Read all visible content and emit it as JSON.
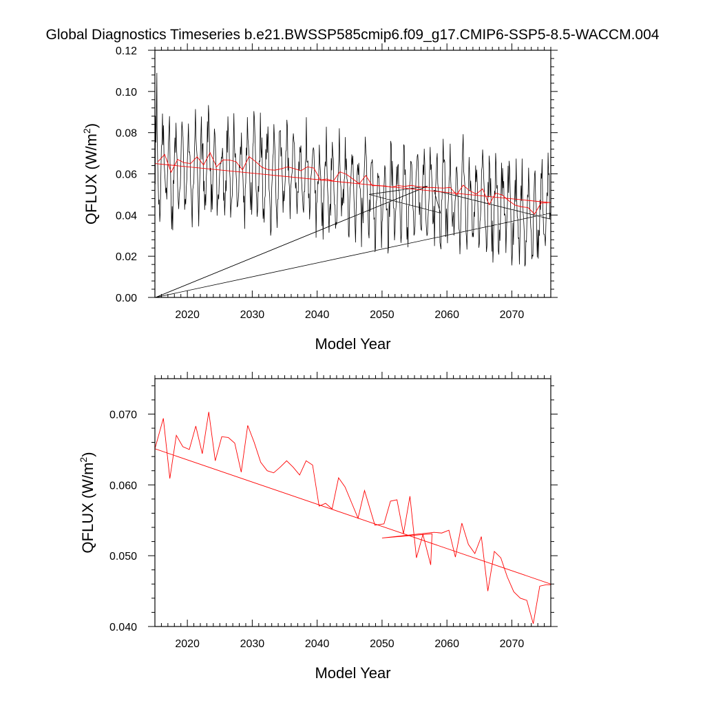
{
  "title": "Global Diagnostics Timeseries b.e21.BWSSP585cmip6.f09_g17.CMIP6-SSP5-8.5-WACCM.004",
  "colors": {
    "monthly": "#000000",
    "annual": "#ff0000",
    "trend": "#ff0000",
    "frame": "#000000"
  },
  "chart_data": [
    {
      "type": "line",
      "xlabel": "Model Year",
      "ylabel": "QFLUX (W/m",
      "ylabel_sup": "2",
      "ylabel_close": ")",
      "xlim": [
        2015,
        2076
      ],
      "ylim": [
        0.0,
        0.12
      ],
      "xticks": [
        2020,
        2030,
        2040,
        2050,
        2060,
        2070
      ],
      "xtick_labels": [
        "2020",
        "2030",
        "2040",
        "2050",
        "2060",
        "2070"
      ],
      "yticks": [
        0.0,
        0.02,
        0.04,
        0.06,
        0.08,
        0.1,
        0.12
      ],
      "ytick_labels": [
        "0.00",
        "0.02",
        "0.04",
        "0.06",
        "0.08",
        "0.10",
        "0.12"
      ],
      "grid": false,
      "series": [
        {
          "style": "monthly",
          "trend_start": 0.066,
          "trend_end": 0.04,
          "amplitude": 0.02,
          "extras": {
            "x": [
              2015.1,
              2057.0,
              2048.0,
              2059.0,
              2058.0
            ],
            "y": [
              0.0,
              0.054,
              0.05,
              0.041,
              0.052
            ]
          }
        },
        {
          "style": "annual",
          "x": [
            2015.5,
            2016.5,
            2017.5,
            2018.5,
            2019.5,
            2020.5,
            2021.5,
            2022.5,
            2023.5,
            2024.5,
            2025.5,
            2026.5,
            2027.5,
            2028.5,
            2029.5,
            2030.5,
            2031.5,
            2032.5,
            2033.5,
            2034.5,
            2035.5,
            2036.5,
            2037.5,
            2038.5,
            2039.5,
            2040.5,
            2041.5,
            2042.5,
            2043.5,
            2044.5,
            2045.5,
            2046.5,
            2047.5,
            2048.5,
            2049.5,
            2050.5,
            2051.5,
            2052.5,
            2053.5,
            2054.5,
            2055.5,
            2056.5,
            2057.5,
            2058.5,
            2059.5,
            2060.5,
            2061.5,
            2062.5,
            2063.5,
            2064.5,
            2065.5,
            2066.5,
            2067.5,
            2068.5,
            2069.5,
            2070.5,
            2071.5,
            2072.5,
            2073.5,
            2074.5,
            2075.5
          ],
          "y": [
            0.066,
            0.0694,
            0.0608,
            0.067,
            0.0654,
            0.065,
            0.0683,
            0.0643,
            0.0703,
            0.0634,
            0.0668,
            0.0667,
            0.0659,
            0.0619,
            0.0684,
            0.066,
            0.0632,
            0.062,
            0.0618,
            0.0625,
            0.0634,
            0.0625,
            0.0615,
            0.0634,
            0.0628,
            0.057,
            0.0575,
            0.0565,
            0.061,
            0.0598,
            0.0575,
            0.0552,
            0.0592,
            0.0542,
            0.0543,
            0.0541,
            0.0535,
            0.0543,
            0.0539,
            0.0544,
            0.0538,
            0.0534,
            0.0534,
            0.0532,
            0.0531,
            0.0534,
            0.0498,
            0.0545,
            0.0518,
            0.0502,
            0.0527,
            0.045,
            0.0506,
            0.0498,
            0.047,
            0.0448,
            0.044,
            0.0436,
            0.0405,
            0.0458,
            0.0459
          ]
        },
        {
          "style": "trend",
          "x": [
            2015.0,
            2076.0
          ],
          "y": [
            0.065,
            0.046
          ]
        }
      ]
    },
    {
      "type": "line",
      "xlabel": "Model Year",
      "ylabel": "QFLUX (W/m",
      "ylabel_sup": "2",
      "ylabel_close": ")",
      "xlim": [
        2015,
        2076
      ],
      "ylim": [
        0.04,
        0.075
      ],
      "xticks": [
        2020,
        2030,
        2040,
        2050,
        2060,
        2070
      ],
      "xtick_labels": [
        "2020",
        "2030",
        "2040",
        "2050",
        "2060",
        "2070"
      ],
      "yticks": [
        0.04,
        0.05,
        0.06,
        0.07
      ],
      "ytick_labels": [
        "0.040",
        "0.050",
        "0.060",
        "0.070"
      ],
      "grid": false,
      "series": [
        {
          "style": "annual",
          "x": [
            2015.0,
            2016.3,
            2017.3,
            2018.3,
            2019.3,
            2020.3,
            2021.3,
            2022.3,
            2023.3,
            2024.3,
            2025.3,
            2026.3,
            2027.3,
            2028.3,
            2029.3,
            2030.3,
            2031.3,
            2032.3,
            2033.3,
            2034.3,
            2035.3,
            2036.3,
            2037.3,
            2038.3,
            2039.3,
            2040.3,
            2041.3,
            2042.3,
            2043.3,
            2044.3,
            2045.3,
            2046.3,
            2047.3,
            2048.9,
            2050.3,
            2051.3,
            2052.3,
            2053.3,
            2054.3,
            2055.3,
            2056.3,
            2057.5,
            2057.7,
            2050.0,
            2058.0,
            2059.2,
            2060.3,
            2061.3,
            2062.3,
            2063.3,
            2064.3,
            2065.3,
            2066.3,
            2067.3,
            2068.3,
            2069.3,
            2070.3,
            2071.3,
            2072.3,
            2073.3,
            2074.3,
            2075.3,
            2076.0
          ],
          "y": [
            0.0651,
            0.0694,
            0.0609,
            0.067,
            0.0654,
            0.065,
            0.0683,
            0.0644,
            0.0703,
            0.0634,
            0.0668,
            0.0667,
            0.0659,
            0.0618,
            0.0684,
            0.066,
            0.0632,
            0.062,
            0.0617,
            0.0625,
            0.0634,
            0.0625,
            0.0614,
            0.0634,
            0.0628,
            0.057,
            0.0574,
            0.0566,
            0.061,
            0.0597,
            0.0575,
            0.0553,
            0.0592,
            0.0543,
            0.0545,
            0.0577,
            0.0579,
            0.0531,
            0.0584,
            0.0497,
            0.053,
            0.0487,
            0.0531,
            0.0525,
            0.0533,
            0.0532,
            0.0536,
            0.0498,
            0.0546,
            0.0516,
            0.0503,
            0.0527,
            0.045,
            0.0506,
            0.0497,
            0.047,
            0.0449,
            0.044,
            0.0437,
            0.0404,
            0.0457,
            0.0459,
            0.0459
          ]
        },
        {
          "style": "trend",
          "x": [
            2015.0,
            2076.0
          ],
          "y": [
            0.0651,
            0.046
          ]
        }
      ]
    }
  ]
}
